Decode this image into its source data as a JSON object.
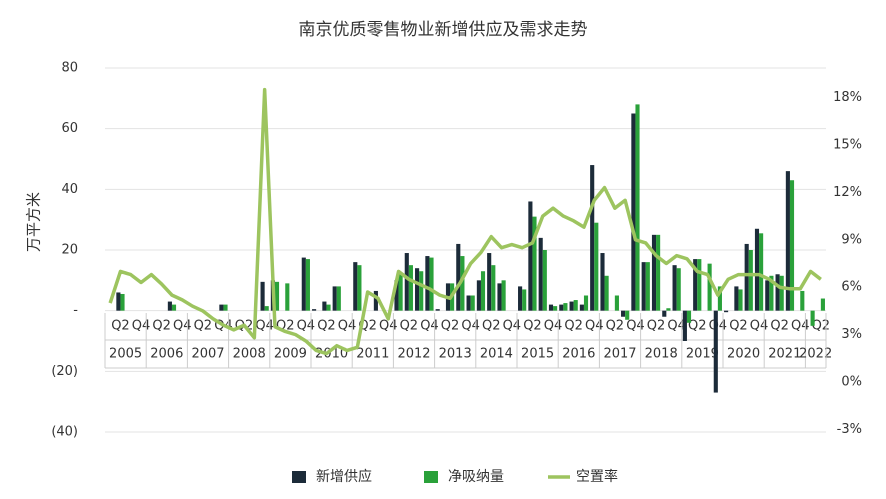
{
  "chart_data": {
    "type": "bar-line",
    "title": "南京优质零售物业新增供应及需求走势",
    "y_label": "万平方米",
    "categories": [
      null,
      "Q2",
      null,
      "Q4",
      null,
      "Q2",
      null,
      "Q4",
      null,
      "Q2",
      null,
      "Q4",
      null,
      "Q2",
      null,
      "Q4",
      null,
      "Q2",
      null,
      "Q4",
      null,
      "Q2",
      null,
      "Q4",
      null,
      "Q2",
      null,
      "Q4",
      null,
      "Q2",
      null,
      "Q4",
      null,
      "Q2",
      null,
      "Q4",
      null,
      "Q2",
      null,
      "Q4",
      null,
      "Q2",
      null,
      "Q4",
      null,
      "Q2",
      null,
      "Q4",
      null,
      "Q2",
      null,
      "Q4",
      null,
      "Q2",
      null,
      "Q4",
      null,
      "Q2",
      null,
      "Q4",
      null,
      "Q2",
      null,
      "Q4",
      null,
      "Q2",
      null,
      "Q4",
      null,
      "Q2"
    ],
    "years": [
      "2005",
      "2006",
      "2007",
      "2008",
      "2009",
      "2010",
      "2011",
      "2012",
      "2013",
      "2014",
      "2015",
      "2016",
      "2017",
      "2018",
      "2019",
      "2020",
      "2021",
      "2022"
    ],
    "series": [
      {
        "name": "新增供应",
        "color": "#1c2b39",
        "values": [
          0,
          6,
          0,
          0,
          0,
          0,
          3,
          0,
          0,
          0,
          0,
          2,
          0,
          0,
          0,
          9.5,
          10,
          0,
          0,
          17.5,
          0.5,
          3,
          8,
          0,
          16,
          0,
          6.5,
          0,
          10,
          19,
          14,
          18,
          0.5,
          9,
          22,
          5,
          10,
          19,
          9,
          0,
          8,
          36,
          24,
          2,
          2,
          3,
          2,
          48,
          19,
          0,
          -2,
          65,
          16,
          25,
          -2,
          15,
          -10,
          17,
          0,
          -27,
          -0.5,
          8,
          22,
          27,
          10,
          12,
          46,
          0,
          0,
          0
        ]
      },
      {
        "name": "净吸纳量",
        "color": "#2aa13a",
        "values": [
          0,
          5.5,
          0,
          0,
          0,
          0,
          2,
          0,
          0,
          0,
          0,
          2,
          0,
          0,
          0,
          1.5,
          9.5,
          9,
          0,
          17,
          0,
          2,
          8,
          0,
          15,
          0,
          0,
          0,
          12,
          15,
          13,
          17.5,
          0,
          9,
          18,
          5,
          13,
          15,
          10,
          0,
          7,
          31,
          20,
          1.5,
          2.5,
          3.5,
          5,
          29,
          11.5,
          5,
          -3,
          68,
          16,
          25,
          0.8,
          14,
          -4,
          17,
          15.5,
          8,
          0,
          7,
          20,
          25.5,
          11.5,
          11.5,
          43,
          6.5,
          -5,
          4
        ]
      },
      {
        "name": "空置率",
        "color": "#9dc45f",
        "axis": "y2",
        "values": [
          5,
          7,
          6.8,
          6.3,
          6.8,
          6.2,
          5.5,
          5.2,
          4.8,
          4.5,
          4,
          3.6,
          3.3,
          3.6,
          2.8,
          18.5,
          3.5,
          3.2,
          3,
          2.6,
          2,
          1.8,
          2.3,
          2,
          2.2,
          5.7,
          5.3,
          4,
          7,
          6.5,
          6.2,
          5.9,
          5.5,
          5.3,
          6.3,
          7.5,
          8.2,
          9.2,
          8.5,
          8.7,
          8.5,
          8.8,
          10.5,
          11,
          10.5,
          10.2,
          9.8,
          11.5,
          12.3,
          11,
          11.5,
          9,
          8.8,
          8,
          7.5,
          8,
          7.8,
          7,
          6.8,
          5.5,
          6.5,
          6.8,
          6.8,
          6.8,
          6.5,
          6,
          5.9,
          5.9,
          7,
          6.5
        ]
      }
    ],
    "ylim": [
      -40,
      80
    ],
    "yticks": [
      {
        "value": -40,
        "label": "(40)"
      },
      {
        "value": -20,
        "label": "(20)"
      },
      {
        "value": 0,
        "label": "-"
      },
      20,
      40,
      60,
      80
    ],
    "y2lim": [
      -3.16,
      19.87
    ],
    "y2ticks": [
      {
        "value": -3,
        "label": "-3%"
      },
      {
        "value": 0,
        "label": "0%"
      },
      {
        "value": 3,
        "label": "3%"
      },
      {
        "value": 6,
        "label": "6%"
      },
      {
        "value": 9,
        "label": "9%"
      },
      {
        "value": 12,
        "label": "12%"
      },
      {
        "value": 15,
        "label": "15%"
      },
      {
        "value": 18,
        "label": "18%"
      }
    ],
    "grid": true,
    "legend": "bottom"
  }
}
